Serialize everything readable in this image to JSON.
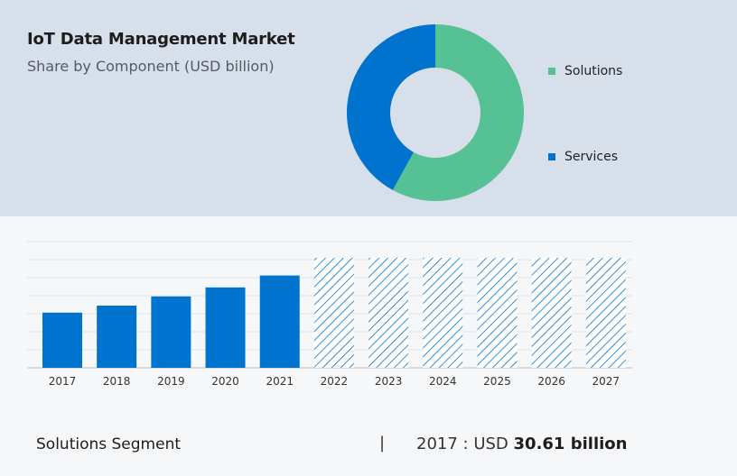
{
  "header": {
    "title": "IoT Data Management Market",
    "subtitle": "Share by Component (USD billion)"
  },
  "chart_data": [
    {
      "type": "pie",
      "subtype": "donut",
      "labels": [
        "Solutions",
        "Services"
      ],
      "values": [
        58,
        42
      ],
      "colors": [
        "#55c195",
        "#0073cf"
      ],
      "legend_position": "right"
    },
    {
      "type": "bar",
      "categories": [
        "2017",
        "2018",
        "2019",
        "2020",
        "2021",
        "2022",
        "2023",
        "2024",
        "2025",
        "2026",
        "2027"
      ],
      "values": [
        30.61,
        34.5,
        39.6,
        44.6,
        51.2,
        61,
        61,
        61,
        61,
        61,
        61
      ],
      "forecast_categories": [
        "2022",
        "2023",
        "2024",
        "2025",
        "2026",
        "2027"
      ],
      "ylim": [
        0,
        70
      ],
      "grid": true,
      "colors": {
        "actual": "#0073cf",
        "forecast_hatch": "#0073cf"
      }
    }
  ],
  "footer": {
    "segment_label": "Solutions Segment",
    "separator": "|",
    "value_prefix": "2017 : USD",
    "value_bold": "30.61 billion"
  }
}
